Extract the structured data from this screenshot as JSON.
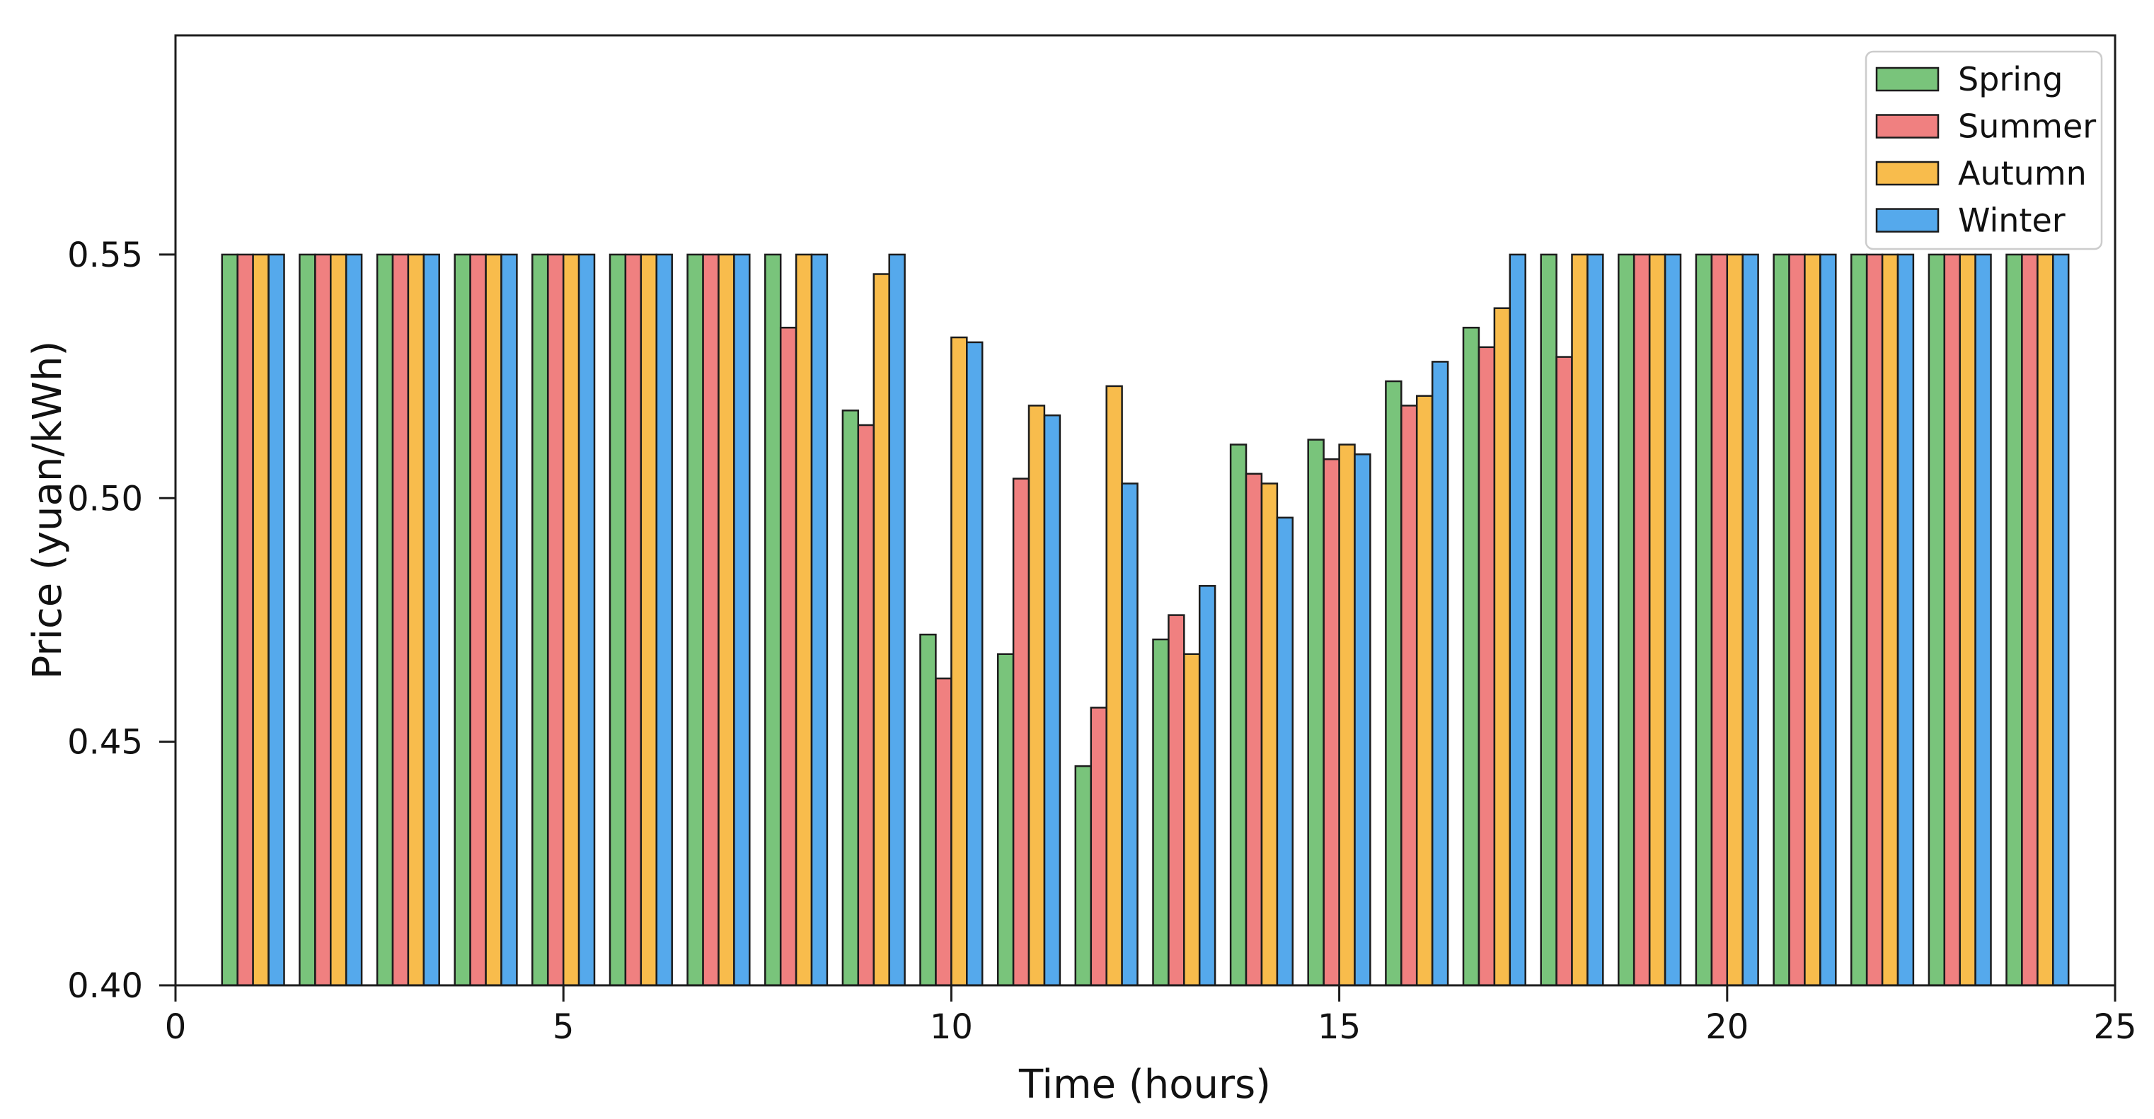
{
  "figure": {
    "background": "#ffffff",
    "text_color": "#111111",
    "spine_color": "#1c1c1c"
  },
  "chart_data": {
    "type": "bar",
    "title": "",
    "xlabel": "Time (hours)",
    "ylabel": "Price (yuan/kWh)",
    "xlim": [
      0,
      25
    ],
    "ylim": [
      0.4,
      0.595
    ],
    "grid": false,
    "legend_position": "upper right",
    "bar_width_hours": 0.2,
    "bar_edge_color": "#1c1c1c",
    "xticks": [
      {
        "pos": 0,
        "label": "0"
      },
      {
        "pos": 5,
        "label": "5"
      },
      {
        "pos": 10,
        "label": "10"
      },
      {
        "pos": 15,
        "label": "15"
      },
      {
        "pos": 20,
        "label": "20"
      },
      {
        "pos": 25,
        "label": "25"
      }
    ],
    "yticks": [
      {
        "pos": 0.4,
        "label": "0.40"
      },
      {
        "pos": 0.45,
        "label": "0.45"
      },
      {
        "pos": 0.5,
        "label": "0.50"
      },
      {
        "pos": 0.55,
        "label": "0.55"
      }
    ],
    "categories": [
      1,
      2,
      3,
      4,
      5,
      6,
      7,
      8,
      9,
      10,
      11,
      12,
      13,
      14,
      15,
      16,
      17,
      18,
      19,
      20,
      21,
      22,
      23,
      24
    ],
    "series": [
      {
        "name": "Spring",
        "color": "#79c47b",
        "values": [
          0.55,
          0.55,
          0.55,
          0.55,
          0.55,
          0.55,
          0.55,
          0.55,
          0.518,
          0.472,
          0.468,
          0.445,
          0.471,
          0.511,
          0.512,
          0.524,
          0.535,
          0.55,
          0.55,
          0.55,
          0.55,
          0.55,
          0.55,
          0.55
        ]
      },
      {
        "name": "Summer",
        "color": "#f08080",
        "values": [
          0.55,
          0.55,
          0.55,
          0.55,
          0.55,
          0.55,
          0.55,
          0.535,
          0.515,
          0.463,
          0.504,
          0.457,
          0.476,
          0.505,
          0.508,
          0.519,
          0.531,
          0.529,
          0.55,
          0.55,
          0.55,
          0.55,
          0.55,
          0.55
        ]
      },
      {
        "name": "Autumn",
        "color": "#f8bc4c",
        "values": [
          0.55,
          0.55,
          0.55,
          0.55,
          0.55,
          0.55,
          0.55,
          0.55,
          0.546,
          0.533,
          0.519,
          0.523,
          0.468,
          0.503,
          0.511,
          0.521,
          0.539,
          0.55,
          0.55,
          0.55,
          0.55,
          0.55,
          0.55,
          0.55
        ]
      },
      {
        "name": "Winter",
        "color": "#55a9ec",
        "values": [
          0.55,
          0.55,
          0.55,
          0.55,
          0.55,
          0.55,
          0.55,
          0.55,
          0.55,
          0.532,
          0.517,
          0.503,
          0.482,
          0.496,
          0.509,
          0.528,
          0.55,
          0.55,
          0.55,
          0.55,
          0.55,
          0.55,
          0.55,
          0.55
        ]
      }
    ]
  }
}
